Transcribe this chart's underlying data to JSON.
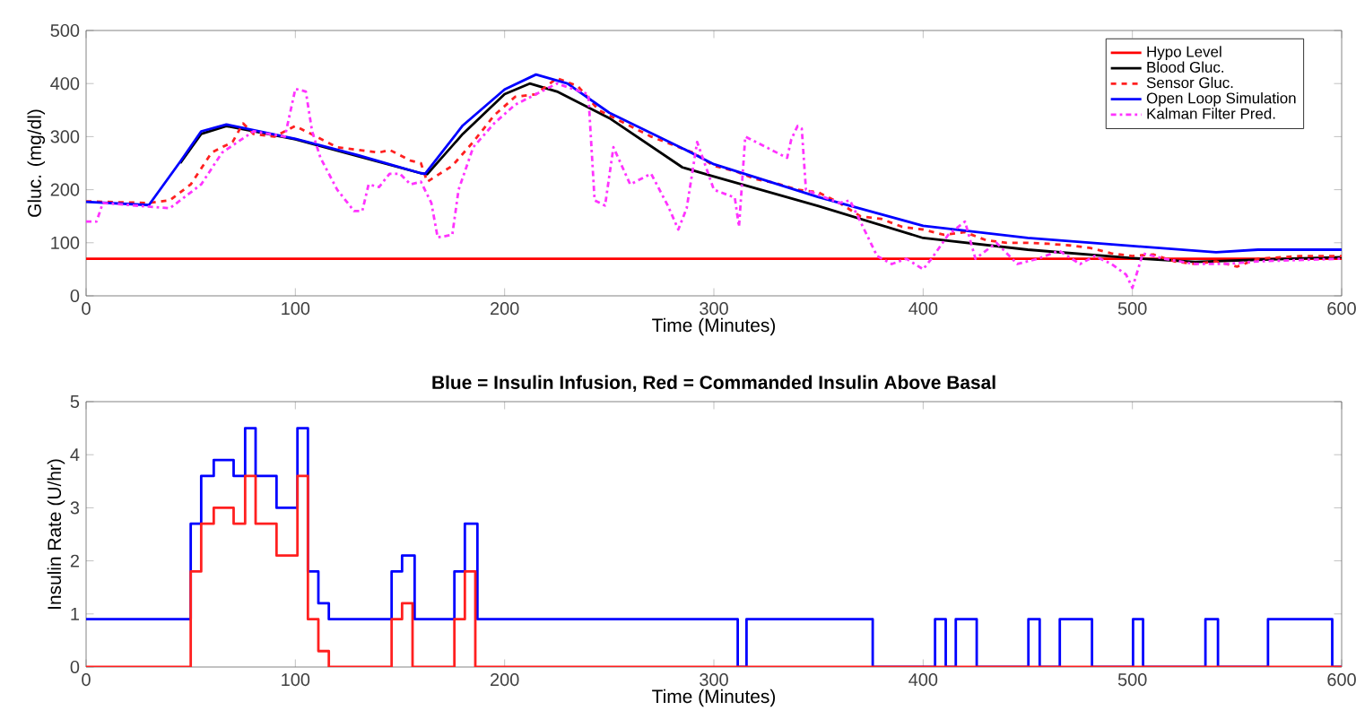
{
  "chart_data": [
    {
      "type": "line",
      "xlabel": "Time (Minutes)",
      "ylabel": "Gluc. (mg/dl)",
      "xlim": [
        0,
        600
      ],
      "ylim": [
        0,
        500
      ],
      "xticks": [
        0,
        100,
        200,
        300,
        400,
        500,
        600
      ],
      "yticks": [
        0,
        100,
        200,
        300,
        400,
        500
      ],
      "legend": "top right",
      "grid": false,
      "series": [
        {
          "name": "Hypo Level",
          "color": "#ff0000",
          "line_style": "solid",
          "x": [
            0,
            600
          ],
          "values": [
            70,
            70
          ]
        },
        {
          "name": "Blood Gluc.",
          "color": "#000000",
          "line_style": "solid",
          "x": [
            45,
            55,
            67,
            100,
            160,
            163,
            180,
            200,
            212,
            225,
            250,
            285,
            300,
            350,
            400,
            450,
            500,
            530,
            560,
            600
          ],
          "values": [
            250,
            305,
            320,
            295,
            231,
            229,
            305,
            380,
            400,
            385,
            335,
            242,
            225,
            169,
            109,
            87,
            71,
            64,
            68,
            73
          ]
        },
        {
          "name": "Sensor Gluc.",
          "color": "#ff2020",
          "line_style": "dashed",
          "x": [
            0,
            30,
            40,
            50,
            60,
            70,
            75,
            80,
            90,
            100,
            110,
            120,
            130,
            140,
            145,
            155,
            160,
            163,
            175,
            185,
            195,
            205,
            215,
            220,
            225,
            235,
            245,
            255,
            270,
            280,
            290,
            300,
            310,
            320,
            330,
            340,
            350,
            360,
            370,
            380,
            390,
            400,
            410,
            420,
            430,
            440,
            450,
            460,
            470,
            480,
            490,
            500,
            510,
            520,
            530,
            540,
            550,
            560,
            580,
            600
          ],
          "values": [
            178,
            175,
            180,
            210,
            270,
            290,
            325,
            305,
            300,
            320,
            300,
            280,
            275,
            270,
            275,
            255,
            250,
            215,
            245,
            290,
            340,
            375,
            380,
            395,
            410,
            395,
            350,
            330,
            300,
            285,
            270,
            245,
            235,
            220,
            212,
            200,
            195,
            175,
            150,
            145,
            130,
            125,
            115,
            120,
            105,
            100,
            100,
            98,
            95,
            90,
            80,
            75,
            78,
            65,
            60,
            65,
            55,
            70,
            75,
            75
          ]
        },
        {
          "name": "Open Loop Simulation",
          "color": "#0000ff",
          "line_style": "solid",
          "x": [
            0,
            30,
            45,
            55,
            67,
            100,
            130,
            160,
            162,
            180,
            200,
            215,
            230,
            250,
            285,
            300,
            350,
            400,
            450,
            500,
            540,
            560,
            600
          ],
          "values": [
            177,
            171,
            253,
            310,
            323,
            296,
            265,
            231,
            230,
            321,
            389,
            417,
            400,
            345,
            278,
            248,
            186,
            132,
            109,
            94,
            82,
            87,
            87
          ]
        },
        {
          "name": "Kalman Filter Pred.",
          "color": "#ff33ff",
          "line_style": "dashdot",
          "x": [
            0,
            5,
            8,
            40,
            55,
            65,
            80,
            95,
            100,
            105,
            108,
            112,
            120,
            128,
            132,
            135,
            140,
            145,
            150,
            155,
            160,
            165,
            168,
            175,
            178,
            185,
            195,
            205,
            215,
            225,
            240,
            243,
            248,
            252,
            260,
            270,
            278,
            283,
            287,
            292,
            300,
            310,
            312,
            315,
            320,
            335,
            337,
            340,
            342,
            344,
            350,
            360,
            365,
            370,
            378,
            385,
            392,
            400,
            404,
            412,
            420,
            425,
            435,
            445,
            455,
            465,
            475,
            482,
            490,
            497,
            500,
            505,
            515,
            530,
            545,
            560,
            600
          ],
          "values": [
            140,
            140,
            175,
            165,
            210,
            270,
            310,
            300,
            390,
            385,
            310,
            260,
            200,
            160,
            160,
            210,
            205,
            230,
            230,
            210,
            215,
            175,
            110,
            115,
            200,
            280,
            325,
            360,
            380,
            400,
            380,
            180,
            170,
            280,
            210,
            230,
            170,
            125,
            165,
            290,
            200,
            185,
            130,
            300,
            290,
            260,
            295,
            320,
            315,
            200,
            190,
            175,
            180,
            140,
            75,
            60,
            70,
            50,
            70,
            115,
            140,
            70,
            100,
            60,
            70,
            85,
            60,
            75,
            60,
            40,
            15,
            80,
            70,
            60,
            60,
            65,
            70
          ]
        }
      ]
    },
    {
      "type": "step",
      "title": "Blue = Insulin Infusion, Red = Commanded Insulin Above Basal",
      "xlabel": "Time (Minutes)",
      "ylabel": "Insulin Rate (U/hr)",
      "xlim": [
        0,
        600
      ],
      "ylim": [
        0,
        5
      ],
      "xticks": [
        0,
        100,
        200,
        300,
        400,
        500,
        600
      ],
      "yticks": [
        0,
        1,
        2,
        3,
        4,
        5
      ],
      "grid": false,
      "series": [
        {
          "color": "#0000ff",
          "x": [
            0,
            50,
            55,
            61,
            70.5,
            76,
            81,
            91,
            101,
            106,
            111,
            116,
            146,
            151,
            157,
            176,
            181,
            187,
            311.4,
            315.6,
            375.9,
            405.7,
            410.8,
            415.6,
            425.6,
            450.3,
            455.7,
            465.3,
            480.7,
            500.3,
            505.1,
            534.9,
            540.9,
            564.8,
            595.5,
            600
          ],
          "values": [
            0.9,
            2.7,
            3.6,
            3.9,
            3.6,
            4.5,
            3.6,
            3.0,
            4.5,
            1.8,
            1.2,
            0.9,
            1.8,
            2.1,
            0.9,
            1.8,
            2.7,
            0.9,
            0,
            0.9,
            0,
            0.9,
            0,
            0.9,
            0,
            0.9,
            0,
            0.9,
            0,
            0.9,
            0,
            0.9,
            0,
            0.9,
            0,
            0
          ]
        },
        {
          "color": "#ff2020",
          "x": [
            0,
            50,
            55,
            61,
            70.5,
            76,
            81,
            91,
            101,
            106,
            111,
            116,
            146,
            151,
            156,
            176,
            181,
            186,
            600
          ],
          "values": [
            0,
            1.8,
            2.7,
            3.0,
            2.7,
            3.6,
            2.7,
            2.1,
            3.6,
            0.9,
            0.3,
            0,
            0.9,
            1.2,
            0,
            0.9,
            1.8,
            0,
            0
          ]
        }
      ]
    }
  ]
}
